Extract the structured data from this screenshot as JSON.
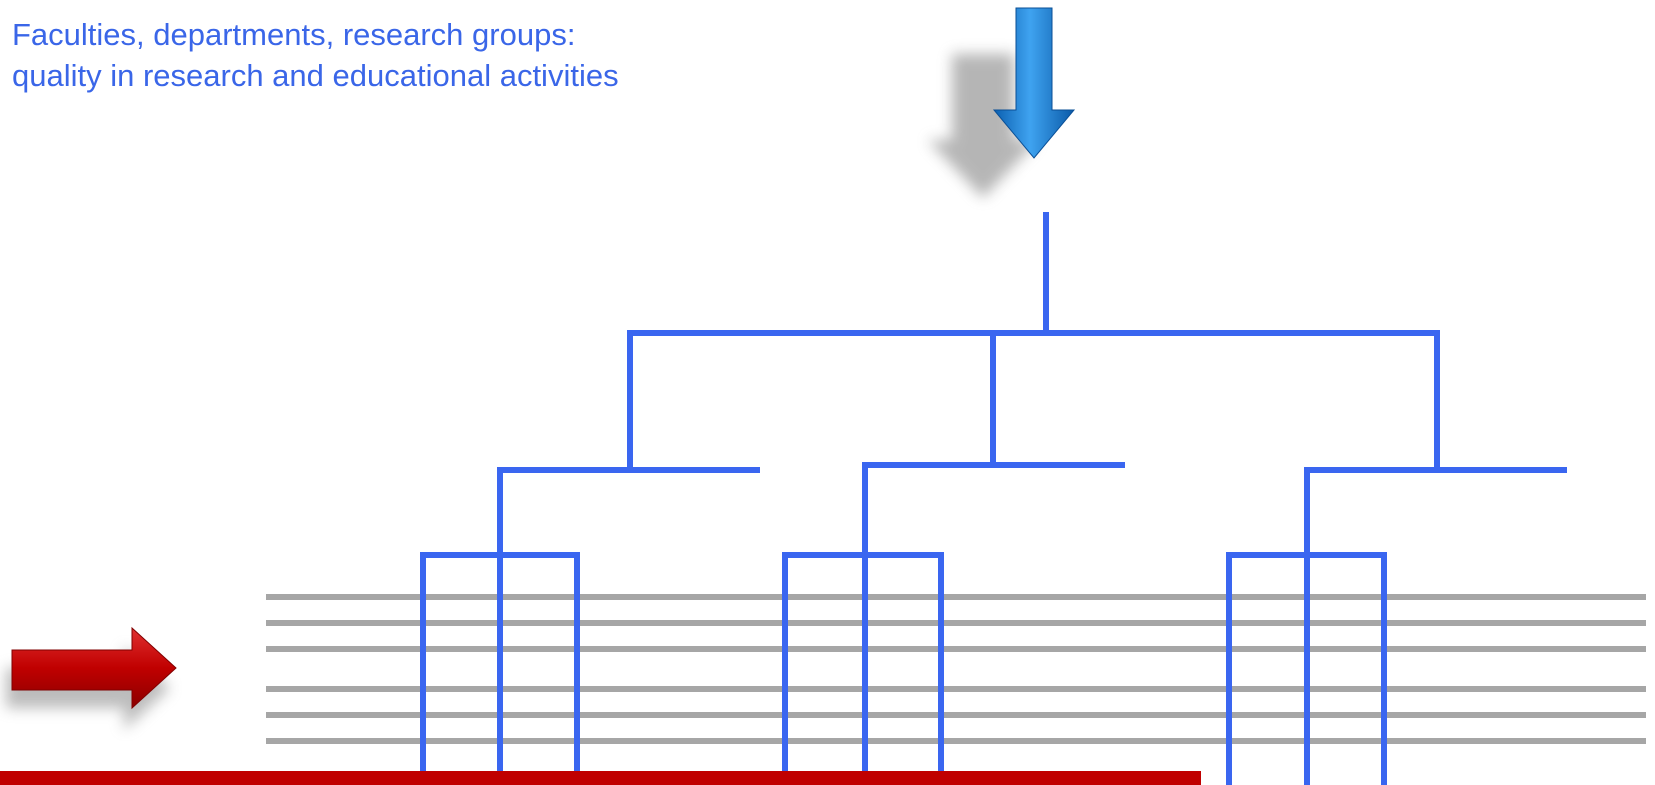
{
  "caption": {
    "line1": "Faculties, departments, research groups:",
    "line2": "quality in research and educational activities"
  },
  "colors": {
    "caption_text": "#3a66e8",
    "tree_lines": "#3a66f0",
    "horizontal_lines": "#a6a6a6",
    "red_arrow": "#c00000",
    "blue_arrow": "#1a7fd4",
    "bottom_bar": "#c00000"
  },
  "icons": {
    "top_arrow": "arrow-down-icon",
    "left_arrow": "arrow-right-icon"
  }
}
